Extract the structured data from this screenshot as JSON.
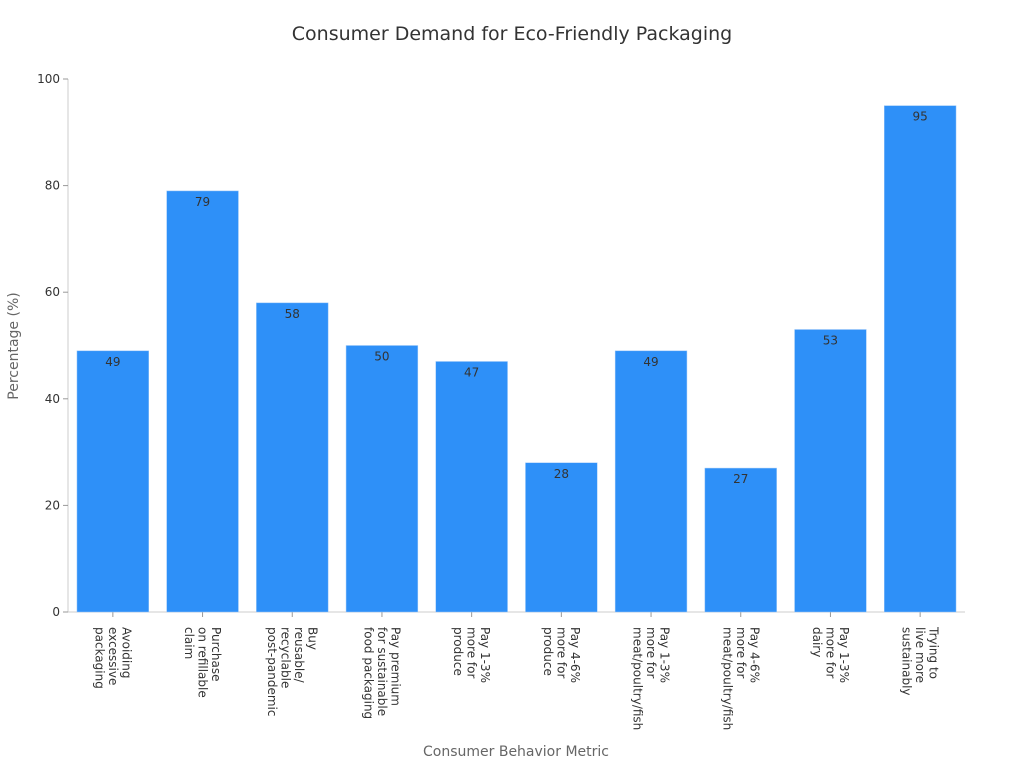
{
  "chart_data": {
    "type": "bar",
    "title": "Consumer Demand for Eco-Friendly Packaging",
    "xlabel": "Consumer Behavior Metric",
    "ylabel": "Percentage (%)",
    "ylim": [
      0,
      100
    ],
    "yticks": [
      0,
      20,
      40,
      60,
      80,
      100
    ],
    "grid": false,
    "bar_color": "#2e90f8",
    "categories": [
      [
        "Avoiding",
        "excessive",
        "packaging"
      ],
      [
        "Purchase",
        "on refillable",
        "claim"
      ],
      [
        "Buy",
        "reusable/",
        "recyclable",
        "post-pandemic"
      ],
      [
        "Pay premium",
        "for sustainable",
        "food packaging"
      ],
      [
        "Pay 1-3%",
        "more for",
        "produce"
      ],
      [
        "Pay 4-6%",
        "more for",
        "produce"
      ],
      [
        "Pay 1-3%",
        "more for",
        "meat/poultry/fish"
      ],
      [
        "Pay 4-6%",
        "more for",
        "meat/poultry/fish"
      ],
      [
        "Pay 1-3%",
        "more for",
        "dairy"
      ],
      [
        "Trying to",
        "live more",
        "sustainably"
      ]
    ],
    "values": [
      49,
      79,
      58,
      50,
      47,
      28,
      49,
      27,
      53,
      95
    ]
  }
}
